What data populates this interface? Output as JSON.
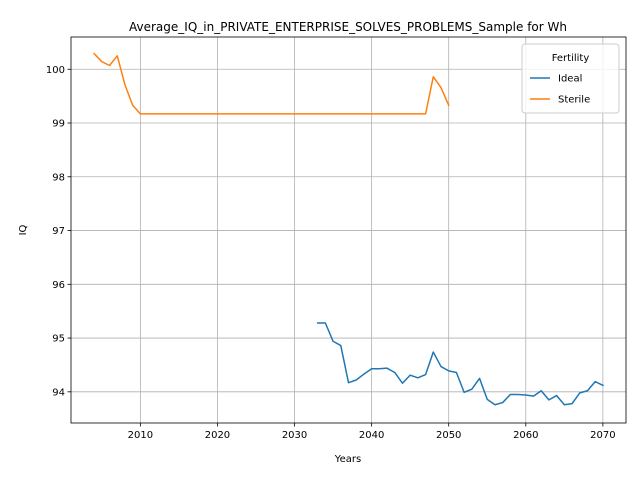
{
  "chart_data": {
    "type": "line",
    "title": "Average_IQ_in_PRIVATE_ENTERPRISE_SOLVES_PROBLEMS_Sample for Wh",
    "xlabel": "Years",
    "ylabel": "IQ",
    "xlim": [
      2001,
      2073
    ],
    "ylim": [
      93.42,
      100.6
    ],
    "xticks": [
      2010,
      2020,
      2030,
      2040,
      2050,
      2060,
      2070
    ],
    "yticks": [
      94,
      95,
      96,
      97,
      98,
      99,
      100
    ],
    "grid": true,
    "legend": {
      "title": "Fertility",
      "position": "top-right"
    },
    "series": [
      {
        "name": "Ideal",
        "color": "#1f77b4",
        "x": [
          2033,
          2034,
          2035,
          2036,
          2037,
          2038,
          2039,
          2040,
          2041,
          2042,
          2043,
          2044,
          2045,
          2046,
          2047,
          2048,
          2049,
          2050,
          2051,
          2052,
          2053,
          2054,
          2055,
          2056,
          2057,
          2058,
          2059,
          2060,
          2061,
          2062,
          2063,
          2064,
          2065,
          2066,
          2067,
          2068,
          2069,
          2070
        ],
        "y": [
          95.28,
          95.28,
          94.94,
          94.86,
          94.17,
          94.22,
          94.33,
          94.43,
          94.43,
          94.44,
          94.36,
          94.16,
          94.31,
          94.26,
          94.32,
          94.74,
          94.47,
          94.39,
          94.36,
          93.99,
          94.05,
          94.25,
          93.86,
          93.76,
          93.8,
          93.95,
          93.95,
          93.94,
          93.92,
          94.02,
          93.85,
          93.93,
          93.76,
          93.78,
          93.98,
          94.02,
          94.19,
          94.12
        ]
      },
      {
        "name": "Sterile",
        "color": "#ff7f0e",
        "x": [
          2004,
          2005,
          2006,
          2007,
          2008,
          2009,
          2010,
          2047,
          2048,
          2049,
          2050
        ],
        "y": [
          100.29,
          100.14,
          100.07,
          100.25,
          99.71,
          99.33,
          99.17,
          99.17,
          99.86,
          99.66,
          99.33
        ]
      }
    ]
  }
}
